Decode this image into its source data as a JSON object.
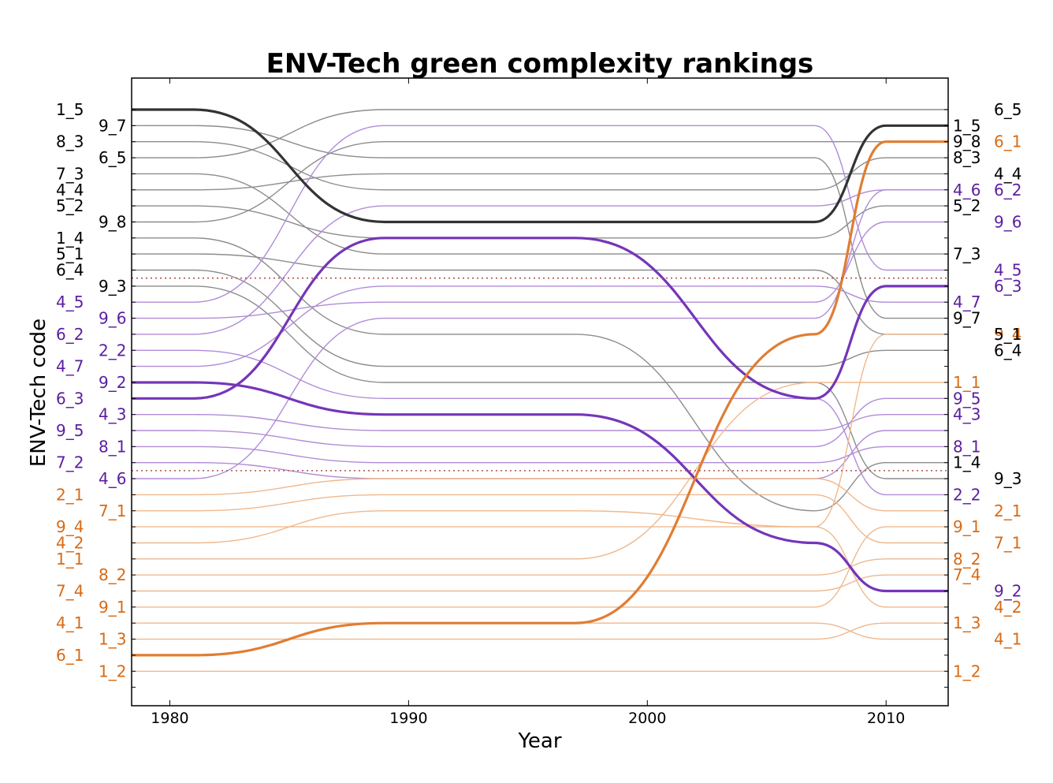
{
  "chart_data": {
    "type": "line",
    "title": "ENV-Tech green complexity rankings",
    "xlabel": "Year",
    "ylabel": "ENV-Tech code",
    "xlim": [
      1978.4,
      2012.6
    ],
    "x_ticks": [
      1980,
      1990,
      2000,
      2010
    ],
    "x": [
      1978.4,
      1981,
      1989,
      1997,
      2007,
      2010,
      2012.6
    ],
    "rank_count": 37,
    "group_colors": {
      "black": "#000000",
      "purple": "#5a1ea0",
      "orange": "#d96a14"
    },
    "line_colors": {
      "black": "#8c8c8c",
      "purple": "#b08cd8",
      "orange": "#f0b88c"
    },
    "highlight_colors": {
      "black": "#333333",
      "purple": "#7535b8",
      "orange": "#e07d32"
    },
    "separator_color": "#b05050",
    "separators_after_rank": [
      11,
      23
    ],
    "label_columns": {
      "col1980": [
        "1_5",
        "8_3",
        "7_3",
        "4_4",
        "5_2",
        "1_4",
        "5_1",
        "6_4",
        "4_5",
        "6_2",
        "4_7",
        "6_3",
        "9_5",
        "7_2",
        "2_1",
        "9_4",
        "4_2",
        "1_1",
        "7_4",
        "4_1",
        "6_1"
      ],
      "col1990": [
        "9_7",
        "6_5",
        "9_8",
        "9_3",
        "9_6",
        "2_2",
        "9_2",
        "4_3",
        "8_1",
        "4_6",
        "7_1",
        "8_2",
        "9_1",
        "1_3",
        "1_2"
      ],
      "col2010": [
        "1_5",
        "8_3",
        "4_6",
        "9_8",
        "5_2",
        "7_3",
        "9_7",
        "4_7",
        "1_1",
        "9_5",
        "4_3",
        "8_1",
        "1_4",
        "2_2",
        "9_1",
        "8_2",
        "7_4",
        "1_3",
        "1_2"
      ],
      "col_right": [
        "6_5",
        "6_1",
        "6_2",
        "4_4",
        "9_6",
        "4_5",
        "6_3",
        "9_4",
        "5_1",
        "6_4",
        "9_3",
        "2_1",
        "7_1",
        "9_2",
        "4_2",
        "4_1"
      ]
    },
    "series": [
      {
        "name": "1_5",
        "group": "black",
        "highlight": true,
        "ranks": [
          1,
          1,
          8,
          8,
          8,
          2,
          2
        ]
      },
      {
        "name": "9_7",
        "group": "black",
        "ranks": [
          2,
          2,
          4,
          4,
          4,
          14,
          14
        ]
      },
      {
        "name": "8_3",
        "group": "black",
        "ranks": [
          3,
          3,
          6,
          6,
          6,
          4,
          4
        ]
      },
      {
        "name": "6_5",
        "group": "black",
        "ranks": [
          4,
          4,
          1,
          1,
          1,
          1,
          1
        ]
      },
      {
        "name": "7_3",
        "group": "black",
        "ranks": [
          5,
          5,
          10,
          10,
          10,
          10,
          10
        ]
      },
      {
        "name": "4_4",
        "group": "black",
        "ranks": [
          6,
          6,
          5,
          5,
          5,
          5,
          5
        ]
      },
      {
        "name": "5_2",
        "group": "black",
        "ranks": [
          7,
          7,
          9,
          9,
          9,
          7,
          7
        ]
      },
      {
        "name": "9_8",
        "group": "black",
        "ranks": [
          8,
          8,
          3,
          3,
          3,
          3,
          3
        ]
      },
      {
        "name": "1_4",
        "group": "black",
        "ranks": [
          9,
          9,
          15,
          15,
          26,
          23,
          23
        ]
      },
      {
        "name": "5_1",
        "group": "black",
        "ranks": [
          10,
          10,
          11,
          11,
          11,
          15,
          15
        ]
      },
      {
        "name": "6_4",
        "group": "black",
        "ranks": [
          11,
          11,
          17,
          17,
          17,
          16,
          16
        ]
      },
      {
        "name": "9_3",
        "group": "black",
        "ranks": [
          12,
          12,
          18,
          18,
          18,
          24,
          24
        ]
      },
      {
        "name": "4_5",
        "group": "purple",
        "ranks": [
          13,
          13,
          2,
          2,
          2,
          11,
          11
        ]
      },
      {
        "name": "9_6",
        "group": "purple",
        "ranks": [
          14,
          14,
          13,
          13,
          13,
          8,
          8
        ]
      },
      {
        "name": "6_2",
        "group": "purple",
        "ranks": [
          15,
          15,
          7,
          7,
          7,
          6,
          6
        ]
      },
      {
        "name": "2_2",
        "group": "purple",
        "ranks": [
          16,
          16,
          19,
          19,
          19,
          25,
          25
        ]
      },
      {
        "name": "4_7",
        "group": "purple",
        "ranks": [
          17,
          17,
          12,
          12,
          12,
          13,
          13
        ]
      },
      {
        "name": "9_2",
        "group": "purple",
        "highlight": true,
        "ranks": [
          18,
          18,
          20,
          20,
          28,
          31,
          31
        ]
      },
      {
        "name": "6_3",
        "group": "purple",
        "highlight": true,
        "ranks": [
          19,
          19,
          9,
          9,
          19,
          12,
          12
        ]
      },
      {
        "name": "4_3",
        "group": "purple",
        "ranks": [
          20,
          20,
          21,
          21,
          21,
          20,
          20
        ]
      },
      {
        "name": "9_5",
        "group": "purple",
        "ranks": [
          21,
          21,
          22,
          22,
          22,
          19,
          19
        ]
      },
      {
        "name": "8_1",
        "group": "purple",
        "ranks": [
          22,
          22,
          23,
          23,
          23,
          22,
          22
        ]
      },
      {
        "name": "7_2",
        "group": "purple",
        "ranks": [
          23,
          23,
          24,
          24,
          24,
          21,
          21
        ]
      },
      {
        "name": "4_6",
        "group": "purple",
        "ranks": [
          24,
          24,
          14,
          14,
          14,
          6,
          6
        ]
      },
      {
        "name": "2_1",
        "group": "orange",
        "ranks": [
          25,
          25,
          24,
          24,
          24,
          26,
          26
        ]
      },
      {
        "name": "7_1",
        "group": "orange",
        "ranks": [
          26,
          26,
          25,
          25,
          25,
          28,
          28
        ]
      },
      {
        "name": "9_4",
        "group": "orange",
        "ranks": [
          27,
          27,
          27,
          27,
          27,
          15,
          15
        ]
      },
      {
        "name": "4_2",
        "group": "orange",
        "ranks": [
          28,
          28,
          26,
          26,
          27,
          32,
          32
        ]
      },
      {
        "name": "1_1",
        "group": "orange",
        "ranks": [
          29,
          29,
          29,
          29,
          18,
          18,
          18
        ]
      },
      {
        "name": "8_2",
        "group": "orange",
        "ranks": [
          30,
          30,
          30,
          30,
          30,
          29,
          29
        ]
      },
      {
        "name": "7_4",
        "group": "orange",
        "ranks": [
          31,
          31,
          31,
          31,
          31,
          30,
          30
        ]
      },
      {
        "name": "9_1",
        "group": "orange",
        "ranks": [
          32,
          32,
          32,
          32,
          32,
          27,
          27
        ]
      },
      {
        "name": "4_1",
        "group": "orange",
        "ranks": [
          33,
          33,
          33,
          33,
          33,
          34,
          34
        ]
      },
      {
        "name": "1_3",
        "group": "orange",
        "ranks": [
          34,
          34,
          34,
          34,
          34,
          33,
          33
        ]
      },
      {
        "name": "6_1",
        "group": "orange",
        "highlight": true,
        "ranks": [
          35,
          35,
          33,
          33,
          15,
          3,
          3
        ]
      },
      {
        "name": "1_2",
        "group": "orange",
        "ranks": [
          36,
          36,
          36,
          36,
          36,
          36,
          36
        ]
      }
    ]
  }
}
